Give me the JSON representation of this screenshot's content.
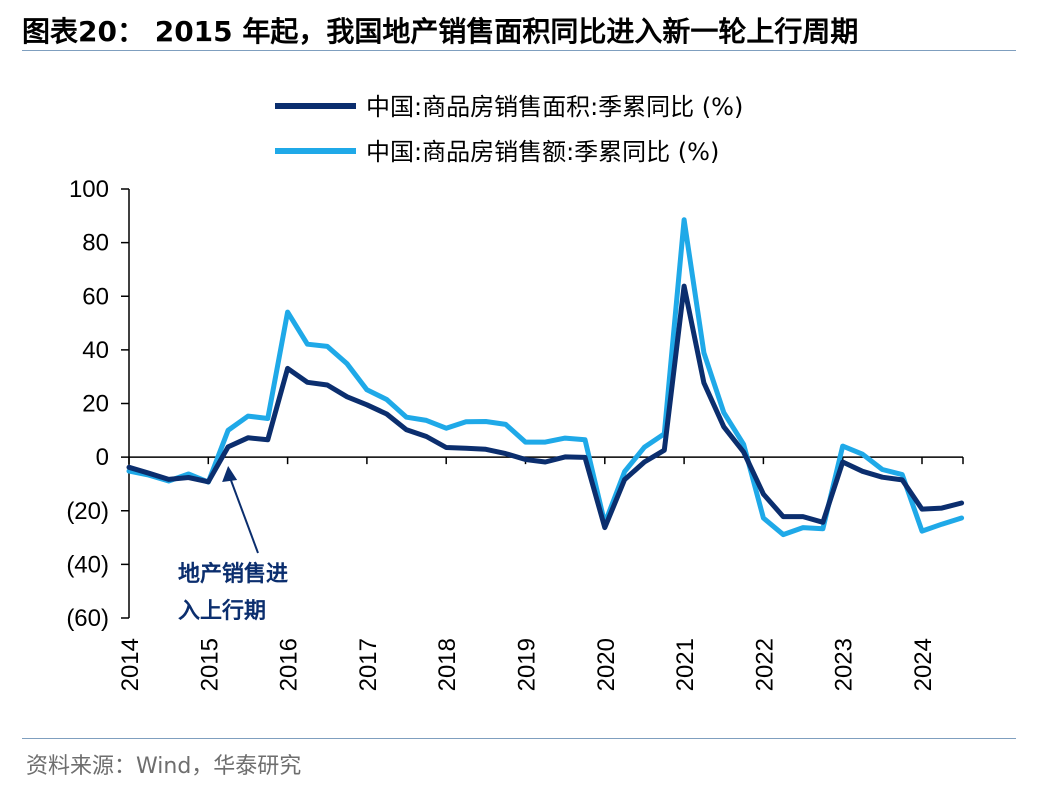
{
  "title": "图表20： 2015 年起，我国地产销售面积同比进入新一轮上行周期",
  "source": "资料来源：Wind，华泰研究",
  "chart_data": {
    "type": "line",
    "x_tick_labels": [
      "2014",
      "2015",
      "2016",
      "2017",
      "2018",
      "2019",
      "2020",
      "2021",
      "2022",
      "2023",
      "2024"
    ],
    "y_tick_labels": [
      "100",
      "80",
      "60",
      "40",
      "20",
      "0",
      "(20)",
      "(40)",
      "(60)"
    ],
    "ylim": [
      -60,
      100
    ],
    "y_ticks": [
      100,
      80,
      60,
      40,
      20,
      0,
      -20,
      -40,
      -60
    ],
    "x_range": [
      "2014-Q1",
      "2024-Q3"
    ],
    "legend_position": "top",
    "grid": false,
    "annotation": {
      "lines": [
        "地产销售进",
        "入上行期"
      ],
      "target": "2015-Q2"
    },
    "series": [
      {
        "name": "中国:商品房销售面积:季累同比 (%)",
        "color": "#0b2e6e",
        "values": [
          -3.8,
          -6.0,
          -8.3,
          -7.6,
          -9.2,
          3.8,
          7.2,
          6.5,
          33.1,
          27.9,
          26.9,
          22.5,
          19.5,
          16.1,
          10.2,
          7.7,
          3.6,
          3.3,
          2.9,
          1.3,
          -0.9,
          -1.8,
          0.1,
          -0.1,
          -26.3,
          -8.4,
          -1.8,
          2.6,
          63.8,
          27.7,
          11.3,
          1.9,
          -13.8,
          -22.2,
          -22.2,
          -24.3,
          -1.8,
          -5.3,
          -7.5,
          -8.5,
          -19.4,
          -19.0,
          -17.1
        ],
        "x": [
          "2014-Q1",
          "2014-Q2",
          "2014-Q3",
          "2014-Q4",
          "2015-Q1",
          "2015-Q2",
          "2015-Q3",
          "2015-Q4",
          "2016-Q1",
          "2016-Q2",
          "2016-Q3",
          "2016-Q4",
          "2017-Q1",
          "2017-Q2",
          "2017-Q3",
          "2017-Q4",
          "2018-Q1",
          "2018-Q2",
          "2018-Q3",
          "2018-Q4",
          "2019-Q1",
          "2019-Q2",
          "2019-Q3",
          "2019-Q4",
          "2020-Q1",
          "2020-Q2",
          "2020-Q3",
          "2020-Q4",
          "2021-Q1",
          "2021-Q2",
          "2021-Q3",
          "2021-Q4",
          "2022-Q1",
          "2022-Q2",
          "2022-Q3",
          "2022-Q4",
          "2023-Q1",
          "2023-Q2",
          "2023-Q3",
          "2023-Q4",
          "2024-Q1",
          "2024-Q2",
          "2024-Q3"
        ]
      },
      {
        "name": "中国:商品房销售额:季累同比 (%)",
        "color": "#1fa9e8",
        "values": [
          -5.2,
          -6.7,
          -8.9,
          -6.3,
          -9.3,
          10.0,
          15.3,
          14.4,
          54.1,
          42.1,
          41.3,
          34.8,
          25.1,
          21.5,
          14.9,
          13.7,
          10.8,
          13.2,
          13.3,
          12.2,
          5.6,
          5.6,
          7.1,
          6.5,
          -24.7,
          -5.4,
          3.7,
          8.7,
          88.5,
          38.9,
          16.6,
          4.8,
          -22.7,
          -28.9,
          -26.3,
          -26.7,
          4.1,
          1.1,
          -4.6,
          -6.5,
          -27.6,
          -25.0,
          -22.7
        ],
        "x": [
          "2014-Q1",
          "2014-Q2",
          "2014-Q3",
          "2014-Q4",
          "2015-Q1",
          "2015-Q2",
          "2015-Q3",
          "2015-Q4",
          "2016-Q1",
          "2016-Q2",
          "2016-Q3",
          "2016-Q4",
          "2017-Q1",
          "2017-Q2",
          "2017-Q3",
          "2017-Q4",
          "2018-Q1",
          "2018-Q2",
          "2018-Q3",
          "2018-Q4",
          "2019-Q1",
          "2019-Q2",
          "2019-Q3",
          "2019-Q4",
          "2020-Q1",
          "2020-Q2",
          "2020-Q3",
          "2020-Q4",
          "2021-Q1",
          "2021-Q2",
          "2021-Q3",
          "2021-Q4",
          "2022-Q1",
          "2022-Q2",
          "2022-Q3",
          "2022-Q4",
          "2023-Q1",
          "2023-Q2",
          "2023-Q3",
          "2023-Q4",
          "2024-Q1",
          "2024-Q2",
          "2024-Q3"
        ]
      }
    ]
  }
}
